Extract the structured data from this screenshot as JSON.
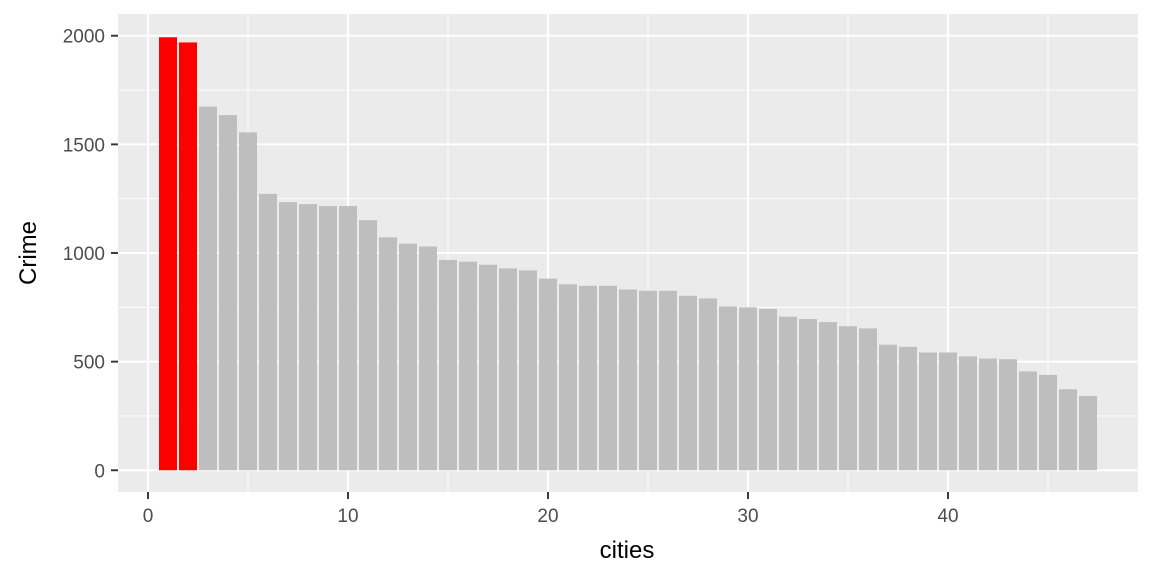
{
  "chart_data": {
    "type": "bar",
    "title": "",
    "xlabel": "cities",
    "ylabel": "Crime",
    "xlim": [
      -1.5,
      49.5
    ],
    "ylim": [
      -100,
      2100
    ],
    "x_ticks": [
      0,
      10,
      20,
      30,
      40
    ],
    "y_ticks": [
      0,
      500,
      1000,
      1500,
      2000
    ],
    "grid": true,
    "legend": "none",
    "colors": {
      "panel_background": "#ebebeb",
      "grid_major": "#ffffff",
      "highlight_bar": "#ff0000",
      "default_bar": "#bebebe"
    },
    "highlighted_x": [
      1,
      2
    ],
    "x": [
      1,
      2,
      3,
      4,
      5,
      6,
      7,
      8,
      9,
      10,
      11,
      12,
      13,
      14,
      15,
      16,
      17,
      18,
      19,
      20,
      21,
      22,
      23,
      24,
      25,
      26,
      27,
      28,
      29,
      30,
      31,
      32,
      33,
      34,
      35,
      36,
      37,
      38,
      39,
      40,
      41,
      42,
      43,
      44,
      45,
      46,
      47
    ],
    "values": [
      1993,
      1969,
      1674,
      1635,
      1555,
      1272,
      1234,
      1225,
      1216,
      1216,
      1151,
      1072,
      1043,
      1030,
      968,
      960,
      946,
      929,
      920,
      882,
      856,
      849,
      849,
      832,
      826,
      826,
      803,
      791,
      754,
      750,
      743,
      707,
      696,
      682,
      663,
      653,
      578,
      568,
      542,
      542,
      524,
      514,
      511,
      455,
      439,
      373,
      342
    ]
  }
}
